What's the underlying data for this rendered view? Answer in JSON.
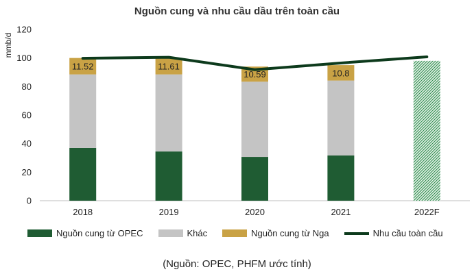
{
  "chart_data": {
    "type": "bar",
    "title": "Nguồn cung và nhu cầu dầu trên toàn cầu",
    "ylabel": "mmb/d",
    "ylim": [
      0,
      120
    ],
    "yticks": [
      "0",
      "20",
      "40",
      "60",
      "80",
      "100",
      "120"
    ],
    "categories": [
      "2018",
      "2019",
      "2020",
      "2021",
      "2022F"
    ],
    "stacked": true,
    "grid": false,
    "legend_position": "bottom",
    "series": [
      {
        "name": "Nguồn cung từ OPEC",
        "kind": "bar",
        "color": "#1f5c33",
        "values": [
          37,
          34.5,
          30.7,
          31.7,
          null
        ]
      },
      {
        "name": "Khác",
        "kind": "bar",
        "color": "#c4c4c4",
        "values": [
          51.5,
          54,
          52.7,
          52.5,
          null
        ]
      },
      {
        "name": "Nguồn cung từ Nga",
        "kind": "bar",
        "color": "#c9a245",
        "values": [
          11.52,
          11.61,
          10.59,
          10.8,
          null
        ],
        "data_labels": [
          "11.52",
          "11.61",
          "10.59",
          "10.8",
          ""
        ]
      },
      {
        "name": "Nhu cầu toàn cầu",
        "kind": "line",
        "color": "#0d3a1c",
        "values": [
          99.8,
          100.5,
          91.8,
          96.5,
          100.8
        ]
      }
    ],
    "forecast_bar": {
      "category": "2022F",
      "value": 98,
      "pattern": "hatched-green"
    }
  },
  "source_note": "(Nguồn: OPEC, PHFM ước tính)"
}
